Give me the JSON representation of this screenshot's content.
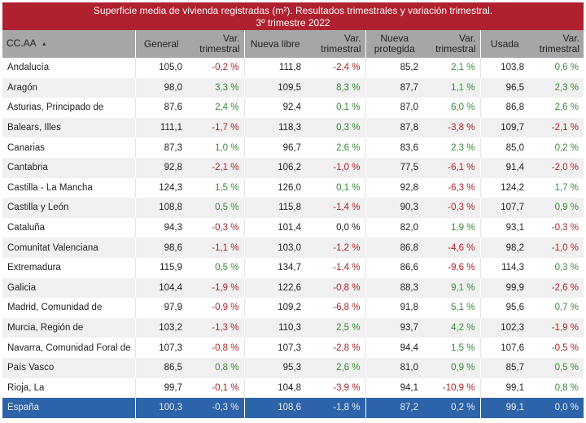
{
  "title": {
    "line1": "Superficie media de vivienda registradas (m²). Resultados trimestrales  y variación trimestral.",
    "line2": "3º trimestre 2022"
  },
  "colors": {
    "header_bar": "#b0202e",
    "column_header": "#a6a6a6",
    "total_row": "#2d63a8",
    "positive": "#3a8a3a",
    "negative": "#a8262e"
  },
  "columns": {
    "ccaa": "CC.AA",
    "sort_icon": "▲",
    "general": "General",
    "var1": [
      "Var.",
      "trimestral"
    ],
    "nueva_libre": "Nueva libre",
    "var2": [
      "Var.",
      "trimestral"
    ],
    "nueva_protegida": [
      "Nueva",
      "protegida"
    ],
    "var3": [
      "Var.",
      "trimestral"
    ],
    "usada": "Usada",
    "var4": [
      "Var.",
      "trimestral"
    ]
  },
  "rows": [
    [
      "Andalucía",
      "105,0",
      "-0,2 %",
      "111,8",
      "-2,4 %",
      "85,2",
      "2,1 %",
      "103,8",
      "0,6 %"
    ],
    [
      "Aragón",
      "98,0",
      "3,3 %",
      "109,5",
      "8,3 %",
      "87,7",
      "1,1 %",
      "96,5",
      "2,3 %"
    ],
    [
      "Asturias, Principado de",
      "87,6",
      "2,4 %",
      "92,4",
      "0,1 %",
      "87,0",
      "6,0 %",
      "86,8",
      "2,6 %"
    ],
    [
      "Balears, Illes",
      "111,1",
      "-1,7 %",
      "118,3",
      "0,3 %",
      "87,8",
      "-3,8 %",
      "109,7",
      "-2,1 %"
    ],
    [
      "Canarias",
      "87,3",
      "1,0 %",
      "96,7",
      "2,6 %",
      "83,6",
      "2,3 %",
      "85,0",
      "0,2 %"
    ],
    [
      "Cantabria",
      "92,8",
      "-2,1 %",
      "106,2",
      "-1,0 %",
      "77,5",
      "-6,1 %",
      "91,4",
      "-2,0 %"
    ],
    [
      "Castilla - La Mancha",
      "124,3",
      "1,5 %",
      "126,0",
      "0,1 %",
      "92,8",
      "-6,3 %",
      "124,2",
      "1,7 %"
    ],
    [
      "Castilla y León",
      "108,8",
      "0,5 %",
      "115,8",
      "-1,4 %",
      "90,3",
      "-0,3 %",
      "107,7",
      "0,9 %"
    ],
    [
      "Cataluña",
      "94,3",
      "-0,3 %",
      "101,4",
      "0,0 %",
      "82,0",
      "1,9 %",
      "93,1",
      "-0,3 %"
    ],
    [
      "Comunitat Valenciana",
      "98,6",
      "-1,1 %",
      "103,0",
      "-1,2 %",
      "86,8",
      "-4,6 %",
      "98,2",
      "-1,0 %"
    ],
    [
      "Extremadura",
      "115,9",
      "0,5 %",
      "134,7",
      "-1,4 %",
      "86,6",
      "-9,6 %",
      "114,3",
      "0,3 %"
    ],
    [
      "Galicia",
      "104,4",
      "-1,9 %",
      "122,6",
      "-0,8 %",
      "88,3",
      "9,1 %",
      "99,9",
      "-2,6 %"
    ],
    [
      "Madrid, Comunidad de",
      "97,9",
      "-0,9 %",
      "109,2",
      "-6,8 %",
      "91,8",
      "5,1 %",
      "95,6",
      "0,7 %"
    ],
    [
      "Murcia, Región de",
      "103,2",
      "-1,3 %",
      "110,3",
      "2,5 %",
      "93,7",
      "4,2 %",
      "102,3",
      "-1,9 %"
    ],
    [
      "Navarra, Comunidad Foral de",
      "107,3",
      "-0,8 %",
      "107,3",
      "-2,8 %",
      "94,4",
      "1,5 %",
      "107,6",
      "-0,5 %"
    ],
    [
      "País Vasco",
      "86,5",
      "0,8 %",
      "95,3",
      "2,6 %",
      "81,0",
      "0,9 %",
      "85,7",
      "0,5 %"
    ],
    [
      "Rioja, La",
      "99,7",
      "-0,1 %",
      "104,8",
      "-3,9 %",
      "94,1",
      "-10,9 %",
      "99,1",
      "0,8 %"
    ]
  ],
  "total": [
    "España",
    "100,3",
    "-0,3 %",
    "108,6",
    "-1,8 %",
    "87,2",
    "0,2 %",
    "99,1",
    "0,0 %"
  ]
}
